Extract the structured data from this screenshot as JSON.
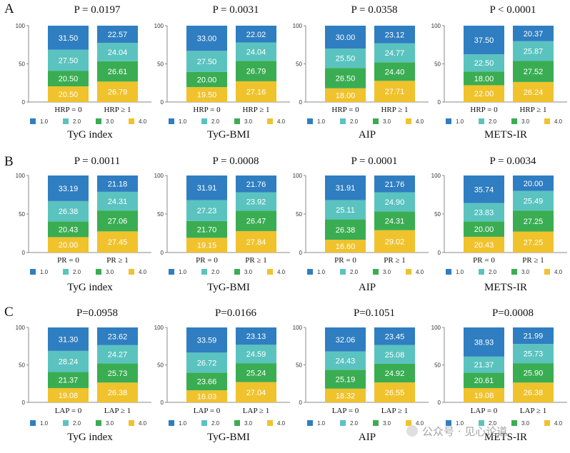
{
  "rows": [
    {
      "letter": "A",
      "panels": [
        {
          "p": "P = 0.0197",
          "groups": [
            "HRP = 0",
            "HRP ≥ 1"
          ],
          "index": "TyG index",
          "values": [
            [
              20.5,
              20.5,
              27.5,
              31.5
            ],
            [
              26.79,
              26.61,
              24.04,
              22.57
            ]
          ],
          "labels": [
            [
              "20.50",
              "20.50",
              "27.50",
              "31.50"
            ],
            [
              "26.79",
              "26.61",
              "24.04",
              "22.57"
            ]
          ]
        },
        {
          "p": "P = 0.0031",
          "groups": [
            "HRP = 0",
            "HRP ≥ 1"
          ],
          "index": "TyG-BMI",
          "values": [
            [
              19.5,
              20.0,
              27.5,
              33.0
            ],
            [
              27.16,
              26.79,
              24.04,
              22.02
            ]
          ],
          "labels": [
            [
              "19.50",
              "20.00",
              "27.50",
              "33.00"
            ],
            [
              "27.16",
              "26.79",
              "24.04",
              "22.02"
            ]
          ]
        },
        {
          "p": "P = 0.0358",
          "groups": [
            "HRP = 0",
            "HRP ≥ 1"
          ],
          "index": "AIP",
          "values": [
            [
              18.0,
              26.5,
              25.5,
              30.0
            ],
            [
              27.71,
              24.4,
              24.77,
              23.12
            ]
          ],
          "labels": [
            [
              "18.00",
              "26.50",
              "25.50",
              "30.00"
            ],
            [
              "27.71",
              "24.40",
              "24.77",
              "23.12"
            ]
          ]
        },
        {
          "p": "P < 0.0001",
          "groups": [
            "HRP = 0",
            "HRP ≥ 1"
          ],
          "index": "METS-IR",
          "values": [
            [
              22.0,
              18.0,
              22.5,
              37.5
            ],
            [
              26.24,
              27.52,
              25.87,
              20.37
            ]
          ],
          "labels": [
            [
              "22.00",
              "18.00",
              "22.50",
              "37.50"
            ],
            [
              "26.24",
              "27.52",
              "25.87",
              "20.37"
            ]
          ]
        }
      ]
    },
    {
      "letter": "B",
      "panels": [
        {
          "p": "P = 0.0011",
          "groups": [
            "PR = 0",
            "PR ≥ 1"
          ],
          "index": "TyG index",
          "values": [
            [
              20.0,
              20.43,
              26.38,
              33.19
            ],
            [
              27.45,
              27.06,
              24.31,
              21.18
            ]
          ],
          "labels": [
            [
              "20.00",
              "20.43",
              "26.38",
              "33.19"
            ],
            [
              "27.45",
              "27.06",
              "24.31",
              "21.18"
            ]
          ]
        },
        {
          "p": "P = 0.0008",
          "groups": [
            "PR = 0",
            "PR ≥ 1"
          ],
          "index": "TyG-BMI",
          "values": [
            [
              19.15,
              21.7,
              27.23,
              31.91
            ],
            [
              27.84,
              26.47,
              23.92,
              21.76
            ]
          ],
          "labels": [
            [
              "19.15",
              "21.70",
              "27.23",
              "31.91"
            ],
            [
              "27.84",
              "26.47",
              "23.92",
              "21.76"
            ]
          ]
        },
        {
          "p": "P = 0.0001",
          "groups": [
            "PR = 0",
            "PR ≥ 1"
          ],
          "index": "AIP",
          "values": [
            [
              16.6,
              26.38,
              25.11,
              31.91
            ],
            [
              29.02,
              24.31,
              24.9,
              21.76
            ]
          ],
          "labels": [
            [
              "16.60",
              "26.38",
              "25.11",
              "31.91"
            ],
            [
              "29.02",
              "24.31",
              "24.90",
              "21.76"
            ]
          ]
        },
        {
          "p": "P = 0.0034",
          "groups": [
            "PR = 0",
            "PR ≥ 1"
          ],
          "index": "METS-IR",
          "values": [
            [
              20.43,
              20.0,
              23.83,
              35.74
            ],
            [
              27.25,
              27.25,
              25.49,
              20.0
            ]
          ],
          "labels": [
            [
              "20.43",
              "20.00",
              "23.83",
              "35.74"
            ],
            [
              "27.25",
              "27.25",
              "25.49",
              "20.00"
            ]
          ]
        }
      ]
    },
    {
      "letter": "C",
      "panels": [
        {
          "p": "P=0.0958",
          "groups": [
            "LAP = 0",
            "LAP ≥ 1"
          ],
          "index": "TyG index",
          "values": [
            [
              19.08,
              21.37,
              28.24,
              31.3
            ],
            [
              26.38,
              25.73,
              24.27,
              23.62
            ]
          ],
          "labels": [
            [
              "19.08",
              "21.37",
              "28.24",
              "31.30"
            ],
            [
              "26.38",
              "25.73",
              "24.27",
              "23.62"
            ]
          ]
        },
        {
          "p": "P=0.0166",
          "groups": [
            "LAP = 0",
            "LAP ≥ 1"
          ],
          "index": "TyG-BMI",
          "values": [
            [
              16.03,
              23.66,
              26.72,
              33.59
            ],
            [
              27.04,
              25.24,
              24.59,
              23.13
            ]
          ],
          "labels": [
            [
              "16.03",
              "23.66",
              "26.72",
              "33.59"
            ],
            [
              "27.04",
              "25.24",
              "24.59",
              "23.13"
            ]
          ]
        },
        {
          "p": "P=0.1051",
          "groups": [
            "LAP = 0",
            "LAP ≥ 1"
          ],
          "index": "AIP",
          "values": [
            [
              18.32,
              25.19,
              24.43,
              32.06
            ],
            [
              26.55,
              24.92,
              25.08,
              23.45
            ]
          ],
          "labels": [
            [
              "18.32",
              "25.19",
              "24.43",
              "32.06"
            ],
            [
              "26.55",
              "24.92",
              "25.08",
              "23.45"
            ]
          ]
        },
        {
          "p": "P=0.0008",
          "groups": [
            "LAP = 0",
            "LAP ≥ 1"
          ],
          "index": "METS-IR",
          "values": [
            [
              19.08,
              20.61,
              21.37,
              38.93
            ],
            [
              26.38,
              25.9,
              25.73,
              21.99
            ]
          ],
          "labels": [
            [
              "19.08",
              "20.61",
              "21.37",
              "38.93"
            ],
            [
              "26.38",
              "25.90",
              "25.73",
              "21.99"
            ]
          ]
        }
      ]
    }
  ],
  "legend": [
    "1.0",
    "2.0",
    "3.0",
    "4.0"
  ],
  "y_ticks": [
    "0",
    "50",
    "100"
  ],
  "colors": {
    "q1": "#2f7ec1",
    "q2": "#5ac3bf",
    "q3": "#3aad52",
    "q4": "#f0c22c"
  },
  "watermark": "公众号 · 见心论道",
  "chart_data": {
    "type": "bar",
    "stacked": true,
    "ylim": [
      0,
      100
    ],
    "series_order_bottom_to_top": [
      "4.0",
      "3.0",
      "2.0",
      "1.0"
    ],
    "legend": [
      "1.0",
      "2.0",
      "3.0",
      "4.0"
    ]
  }
}
